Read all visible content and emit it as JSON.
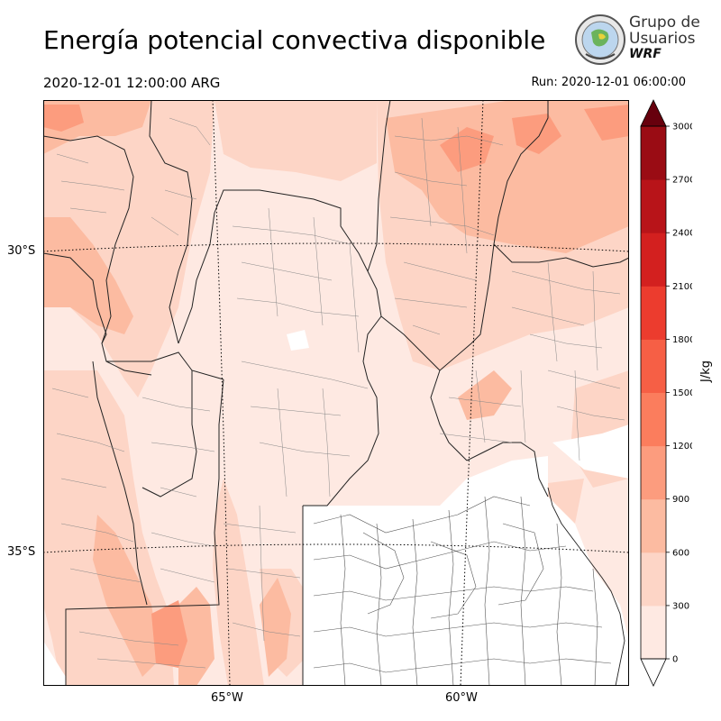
{
  "header": {
    "title": "Energía potencial convectiva disponible",
    "valid_time": "2020-12-01 12:00:00 ARG",
    "run_time": "Run: 2020-12-01 06:00:00"
  },
  "logo": {
    "line1": "Grupo de",
    "line2": "Usuarios",
    "line3": "WRF"
  },
  "map": {
    "lat_labels": [
      "30°S",
      "35°S"
    ],
    "lon_labels": [
      "65°W",
      "60°W"
    ]
  },
  "colorbar": {
    "unit": "J/kg",
    "ticks": [
      "0",
      "300",
      "600",
      "900",
      "1200",
      "1500",
      "1800",
      "2100",
      "2400",
      "2700",
      "3000"
    ],
    "colors": [
      "#fee9e2",
      "#fdd5c6",
      "#fcbba1",
      "#fc9c7e",
      "#fb7d5d",
      "#f65f45",
      "#ec3c2e",
      "#d3201f",
      "#b81419",
      "#9a0c14",
      "#7a0610"
    ],
    "over_color": "#67000d",
    "under_color": "#ffffff"
  }
}
